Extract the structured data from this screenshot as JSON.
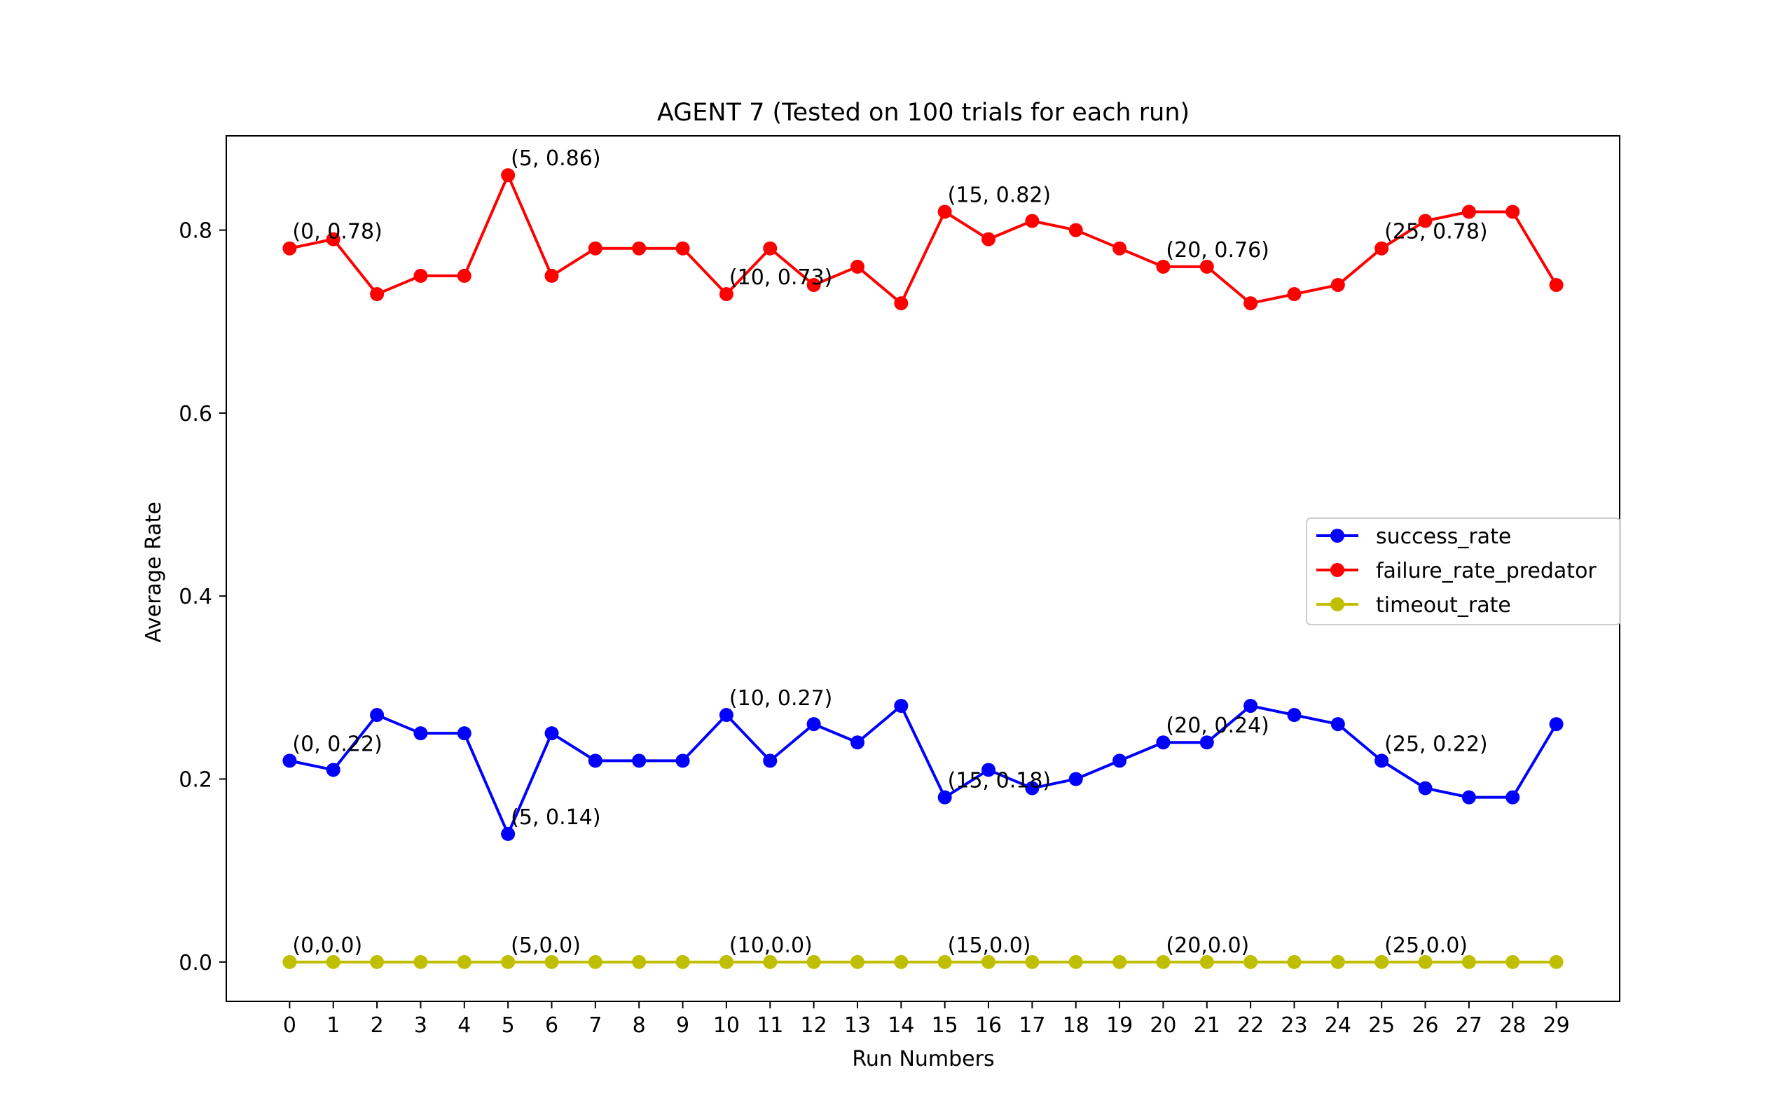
{
  "chart_data": {
    "type": "line",
    "title": "AGENT 7 (Tested on 100 trials for each run)",
    "xlabel": "Run Numbers",
    "ylabel": "Average Rate",
    "x": [
      0,
      1,
      2,
      3,
      4,
      5,
      6,
      7,
      8,
      9,
      10,
      11,
      12,
      13,
      14,
      15,
      16,
      17,
      18,
      19,
      20,
      21,
      22,
      23,
      24,
      25,
      26,
      27,
      28,
      29
    ],
    "xlim": [
      -1.45,
      30.45
    ],
    "ylim": [
      -0.043,
      0.903
    ],
    "yticks": [
      0.0,
      0.2,
      0.4,
      0.6,
      0.8
    ],
    "ytick_labels": [
      "0.0",
      "0.2",
      "0.4",
      "0.6",
      "0.8"
    ],
    "grid": false,
    "legend_position": "center-right",
    "series": [
      {
        "name": "success_rate",
        "color": "#0000ff",
        "values": [
          0.22,
          0.21,
          0.27,
          0.25,
          0.25,
          0.14,
          0.25,
          0.22,
          0.22,
          0.22,
          0.27,
          0.22,
          0.26,
          0.24,
          0.28,
          0.18,
          0.21,
          0.19,
          0.2,
          0.22,
          0.24,
          0.24,
          0.28,
          0.27,
          0.26,
          0.22,
          0.19,
          0.18,
          0.18,
          0.26
        ],
        "annotations": [
          {
            "x": 0,
            "y": 0.22,
            "text": "(0, 0.22)"
          },
          {
            "x": 5,
            "y": 0.14,
            "text": "(5, 0.14)"
          },
          {
            "x": 10,
            "y": 0.27,
            "text": "(10, 0.27)"
          },
          {
            "x": 15,
            "y": 0.18,
            "text": "(15, 0.18)"
          },
          {
            "x": 20,
            "y": 0.24,
            "text": "(20, 0.24)"
          },
          {
            "x": 25,
            "y": 0.22,
            "text": "(25, 0.22)"
          }
        ]
      },
      {
        "name": "failure_rate_predator",
        "color": "#ff0000",
        "values": [
          0.78,
          0.79,
          0.73,
          0.75,
          0.75,
          0.86,
          0.75,
          0.78,
          0.78,
          0.78,
          0.73,
          0.78,
          0.74,
          0.76,
          0.72,
          0.82,
          0.79,
          0.81,
          0.8,
          0.78,
          0.76,
          0.76,
          0.72,
          0.73,
          0.74,
          0.78,
          0.81,
          0.82,
          0.82,
          0.74
        ],
        "annotations": [
          {
            "x": 0,
            "y": 0.78,
            "text": "(0, 0.78)"
          },
          {
            "x": 5,
            "y": 0.86,
            "text": "(5, 0.86)"
          },
          {
            "x": 10,
            "y": 0.73,
            "text": "(10, 0.73)"
          },
          {
            "x": 15,
            "y": 0.82,
            "text": "(15, 0.82)"
          },
          {
            "x": 20,
            "y": 0.76,
            "text": "(20, 0.76)"
          },
          {
            "x": 25,
            "y": 0.78,
            "text": "(25, 0.78)"
          }
        ]
      },
      {
        "name": "timeout_rate",
        "color": "#bfbf00",
        "values": [
          0,
          0,
          0,
          0,
          0,
          0,
          0,
          0,
          0,
          0,
          0,
          0,
          0,
          0,
          0,
          0,
          0,
          0,
          0,
          0,
          0,
          0,
          0,
          0,
          0,
          0,
          0,
          0,
          0,
          0
        ],
        "annotations": [
          {
            "x": 0,
            "y": 0.0,
            "text": "(0,0.0)"
          },
          {
            "x": 5,
            "y": 0.0,
            "text": "(5,0.0)"
          },
          {
            "x": 10,
            "y": 0.0,
            "text": "(10,0.0)"
          },
          {
            "x": 15,
            "y": 0.0,
            "text": "(15,0.0)"
          },
          {
            "x": 20,
            "y": 0.0,
            "text": "(20,0.0)"
          },
          {
            "x": 25,
            "y": 0.0,
            "text": "(25,0.0)"
          }
        ]
      }
    ]
  }
}
